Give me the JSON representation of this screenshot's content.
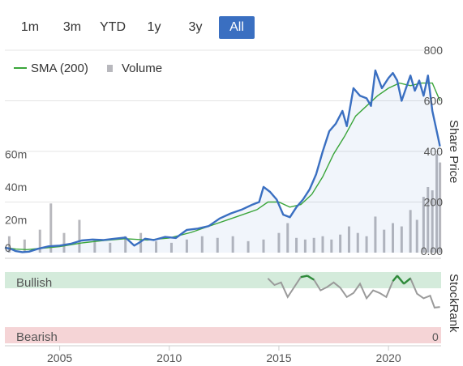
{
  "range_buttons": [
    {
      "label": "1m",
      "active": false
    },
    {
      "label": "3m",
      "active": false
    },
    {
      "label": "YTD",
      "active": false
    },
    {
      "label": "1y",
      "active": false
    },
    {
      "label": "3y",
      "active": false
    },
    {
      "label": "All",
      "active": true
    }
  ],
  "colors": {
    "price": "#3a6fc1",
    "sma": "#3aa53a",
    "volume": "#b8b8bd",
    "bullish_band": "#d4ebdb",
    "bearish_band": "#f5d4d6",
    "bullish_text": "#2e8b3a",
    "bearish_text": "#c0392b",
    "active_button": "#3a6fc1"
  },
  "chart_data": [
    {
      "type": "line",
      "legend": [
        {
          "label": "SMA (200)",
          "icon": "line-swatch"
        },
        {
          "label": "Volume",
          "icon": "bar-swatch"
        }
      ],
      "ylabel": "Share Price",
      "ylim": [
        0,
        800
      ],
      "yticks": [
        "0.00",
        "200",
        "400",
        "600",
        "800"
      ],
      "volume_ylim": [
        0,
        80
      ],
      "volume_ticks": [
        "0",
        "20m",
        "40m",
        "60m"
      ],
      "xlim": [
        2002.5,
        2022.4
      ],
      "xticks": [
        "2005",
        "2010",
        "2015",
        "2020"
      ],
      "series": [
        {
          "name": "Price",
          "x": [
            2002.5,
            2002.8,
            2003.0,
            2003.3,
            2003.6,
            2004.0,
            2004.5,
            2005.0,
            2005.5,
            2006.0,
            2006.5,
            2007.0,
            2007.5,
            2008.0,
            2008.4,
            2008.6,
            2008.9,
            2009.3,
            2009.8,
            2010.3,
            2010.8,
            2011.3,
            2011.8,
            2012.3,
            2012.8,
            2013.3,
            2013.8,
            2014.1,
            2014.3,
            2014.6,
            2014.9,
            2015.2,
            2015.5,
            2015.8,
            2016.1,
            2016.4,
            2016.7,
            2017.0,
            2017.3,
            2017.6,
            2017.9,
            2018.1,
            2018.4,
            2018.7,
            2019.0,
            2019.2,
            2019.4,
            2019.7,
            2020.0,
            2020.2,
            2020.4,
            2020.6,
            2020.8,
            2021.0,
            2021.2,
            2021.4,
            2021.6,
            2021.8,
            2022.0,
            2022.2,
            2022.35
          ],
          "values": [
            20,
            14,
            6,
            2,
            4,
            15,
            25,
            28,
            35,
            48,
            52,
            50,
            55,
            60,
            28,
            38,
            55,
            50,
            62,
            58,
            90,
            95,
            105,
            135,
            155,
            170,
            190,
            200,
            260,
            240,
            210,
            150,
            140,
            180,
            210,
            250,
            310,
            400,
            480,
            510,
            560,
            500,
            650,
            620,
            610,
            580,
            720,
            650,
            690,
            710,
            680,
            600,
            650,
            700,
            640,
            680,
            620,
            700,
            560,
            480,
            420
          ]
        },
        {
          "name": "SMA (200)",
          "x": [
            2002.5,
            2003.0,
            2003.5,
            2004.0,
            2005.0,
            2006.0,
            2007.0,
            2008.0,
            2009.0,
            2010.0,
            2011.0,
            2012.0,
            2013.0,
            2014.0,
            2014.5,
            2015.0,
            2015.5,
            2016.0,
            2016.5,
            2017.0,
            2017.5,
            2018.0,
            2018.5,
            2019.0,
            2019.5,
            2020.0,
            2020.5,
            2021.0,
            2021.5,
            2022.0,
            2022.35
          ],
          "values": [
            20,
            14,
            12,
            16,
            24,
            38,
            48,
            55,
            50,
            58,
            80,
            110,
            140,
            170,
            200,
            200,
            180,
            190,
            230,
            300,
            390,
            460,
            540,
            580,
            620,
            650,
            670,
            660,
            670,
            670,
            600
          ]
        }
      ],
      "volume": {
        "x": [
          2002.7,
          2003.4,
          2004.1,
          2004.6,
          2005.2,
          2005.9,
          2006.6,
          2007.3,
          2008.0,
          2008.7,
          2009.4,
          2010.1,
          2010.8,
          2011.5,
          2012.2,
          2012.9,
          2013.6,
          2014.3,
          2015.0,
          2015.4,
          2015.8,
          2016.2,
          2016.6,
          2017.0,
          2017.4,
          2017.8,
          2018.2,
          2018.6,
          2019.0,
          2019.4,
          2019.8,
          2020.2,
          2020.6,
          2021.0,
          2021.3,
          2021.6,
          2021.8,
          2022.0,
          2022.2,
          2022.35
        ],
        "values": [
          10,
          8,
          14,
          30,
          12,
          20,
          8,
          6,
          10,
          12,
          7,
          6,
          8,
          10,
          9,
          10,
          7,
          8,
          12,
          18,
          9,
          8,
          9,
          10,
          8,
          11,
          16,
          12,
          10,
          22,
          14,
          18,
          16,
          26,
          20,
          34,
          40,
          38,
          60,
          55
        ]
      }
    },
    {
      "type": "line",
      "ylabel": "StockRank",
      "ylim": [
        0,
        100
      ],
      "zones": [
        {
          "label": "Bullish"
        },
        {
          "label": "Bearish"
        }
      ],
      "ytick_low": "0",
      "series": [
        {
          "name": "StockRank",
          "x": [
            2014.5,
            2014.8,
            2015.1,
            2015.4,
            2015.7,
            2016.0,
            2016.3,
            2016.6,
            2016.9,
            2017.2,
            2017.5,
            2017.8,
            2018.1,
            2018.4,
            2018.7,
            2019.0,
            2019.3,
            2019.6,
            2019.9,
            2020.2,
            2020.4,
            2020.7,
            2021.0,
            2021.3,
            2021.6,
            2021.9,
            2022.1,
            2022.35
          ],
          "values": [
            88,
            78,
            82,
            60,
            75,
            90,
            92,
            86,
            70,
            75,
            82,
            74,
            60,
            66,
            80,
            58,
            70,
            66,
            60,
            84,
            92,
            80,
            88,
            65,
            58,
            62,
            44,
            45
          ]
        }
      ]
    }
  ]
}
